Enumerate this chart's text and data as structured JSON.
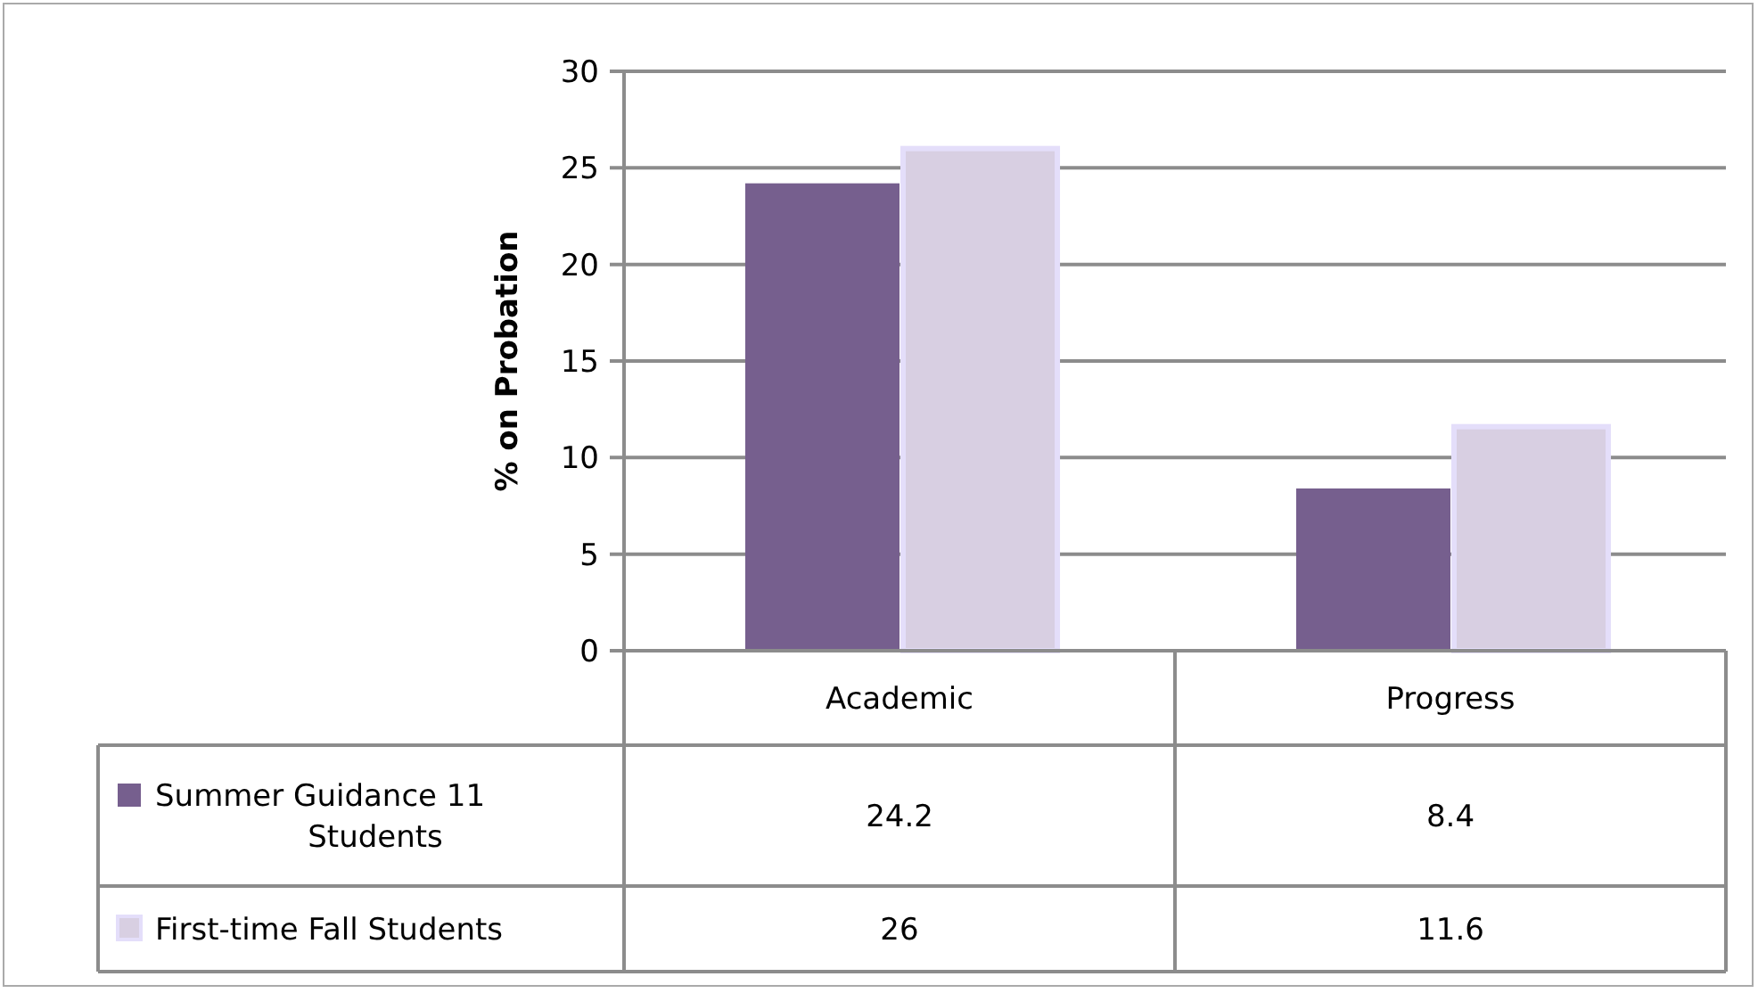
{
  "chart_data": {
    "type": "bar",
    "ylabel": "% on Probation",
    "categories": [
      "Academic",
      "Progress"
    ],
    "series": [
      {
        "name": "Summer Guidance 11 Students",
        "color": "#765f8e",
        "values": [
          24.2,
          8.4
        ]
      },
      {
        "name": "First-time Fall Students",
        "color": "#d8cfe2",
        "values": [
          26,
          11.6
        ]
      }
    ],
    "ylim": [
      0,
      30
    ],
    "yticks": [
      0,
      5,
      10,
      15,
      20,
      25,
      30
    ],
    "grid": "y",
    "legend": "bottom",
    "data_labels": true
  }
}
